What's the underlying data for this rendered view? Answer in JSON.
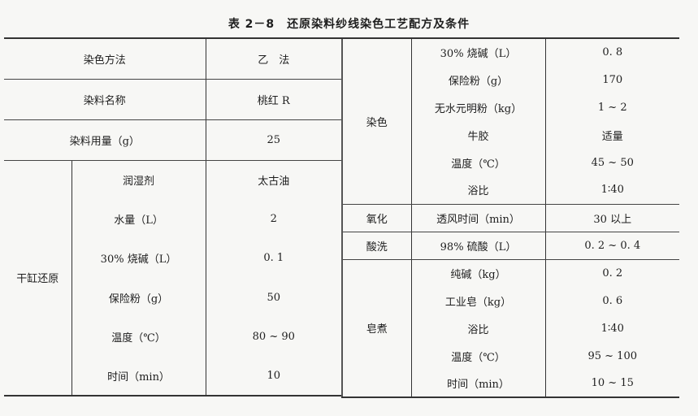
{
  "title": "表 2－8　还原染料纱线染色工艺配方及条件",
  "left": {
    "top_rows": [
      {
        "label": "染色方法",
        "value": "乙　法"
      },
      {
        "label": "染料名称",
        "value": "桃红 R"
      },
      {
        "label": "染料用量（g）",
        "value": "25"
      }
    ],
    "group": {
      "name": "干缸还原",
      "rows": [
        {
          "label": "润湿剂",
          "value": "太古油"
        },
        {
          "label": "水量（L）",
          "value": "2"
        },
        {
          "label": "30% 烧碱（L）",
          "value": "0. 1"
        },
        {
          "label": "保险粉（g）",
          "value": "50"
        },
        {
          "label": "温度（℃）",
          "value": "80 ~ 90"
        },
        {
          "label": "时间（min）",
          "value": "10"
        }
      ]
    }
  },
  "right": {
    "groups": [
      {
        "name": "染色",
        "rows": [
          {
            "label": "30% 烧碱（L）",
            "value": "0. 8"
          },
          {
            "label": "保险粉（g）",
            "value": "170"
          },
          {
            "label": "无水元明粉（kg）",
            "value": "1 ~ 2"
          },
          {
            "label": "牛胶",
            "value": "适量"
          },
          {
            "label": "温度（℃）",
            "value": "45 ~ 50"
          },
          {
            "label": "浴比",
            "value": "1∶40"
          }
        ]
      },
      {
        "name": "氧化",
        "rows": [
          {
            "label": "透风时间（min）",
            "value": "30 以上"
          }
        ]
      },
      {
        "name": "酸洗",
        "rows": [
          {
            "label": "98% 硫酸（L）",
            "value": "0. 2 ~ 0. 4"
          }
        ]
      },
      {
        "name": "皂煮",
        "rows": [
          {
            "label": "纯碱（kg）",
            "value": "0. 2"
          },
          {
            "label": "工业皂（kg）",
            "value": "0. 6"
          },
          {
            "label": "浴比",
            "value": "1∶40"
          },
          {
            "label": "温度（℃）",
            "value": "95 ~ 100"
          },
          {
            "label": "时间（min）",
            "value": "10 ~ 15"
          }
        ]
      }
    ]
  }
}
